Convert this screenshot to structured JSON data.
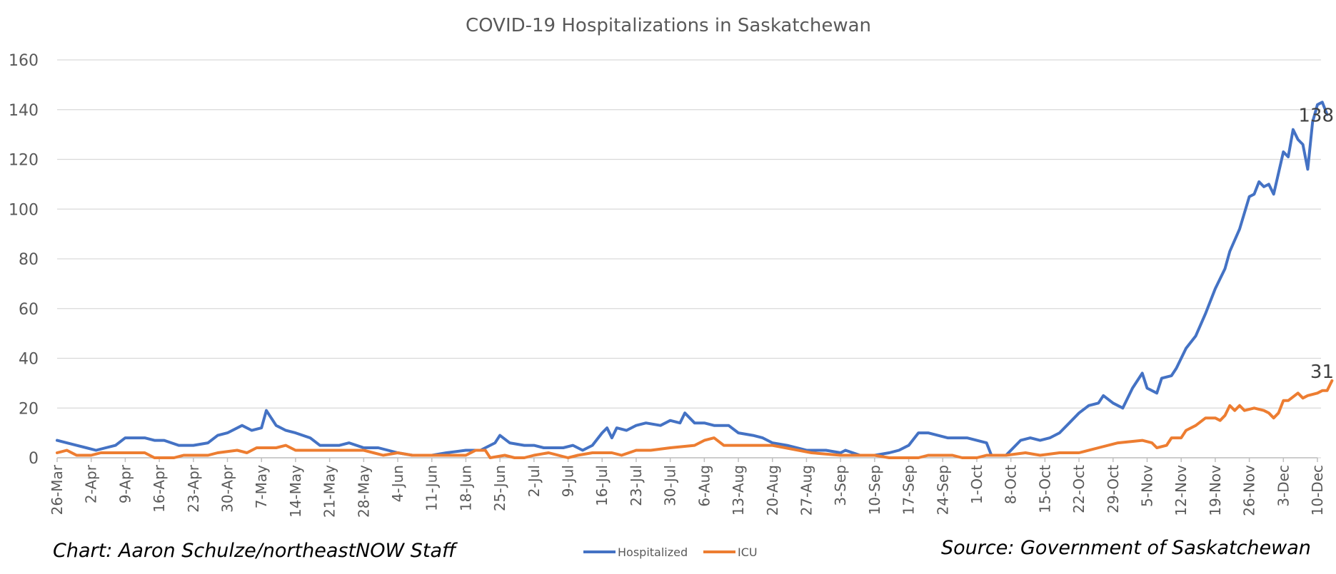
{
  "chart_data": {
    "type": "line",
    "title": "COVID-19 Hospitalizations in Saskatchewan",
    "xlabel": "",
    "ylabel": "",
    "ylim": [
      0,
      160
    ],
    "yticks": [
      "0",
      "20",
      "40",
      "60",
      "80",
      "100",
      "120",
      "140",
      "160"
    ],
    "grid": true,
    "legend_position": "bottom",
    "x_start": "26-Mar",
    "x_end": "10-Dec",
    "xticks": [
      "26-Mar",
      "2-Apr",
      "9-Apr",
      "16-Apr",
      "23-Apr",
      "30-Apr",
      "7-May",
      "14-May",
      "21-May",
      "28-May",
      "4-Jun",
      "11-Jun",
      "18-Jun",
      "25-Jun",
      "2-Jul",
      "9-Jul",
      "16-Jul",
      "23-Jul",
      "30-Jul",
      "6-Aug",
      "13-Aug",
      "20-Aug",
      "27-Aug",
      "3-Sep",
      "10-Sep",
      "17-Sep",
      "24-Sep",
      "1-Oct",
      "8-Oct",
      "15-Oct",
      "22-Oct",
      "29-Oct",
      "5-Nov",
      "12-Nov",
      "19-Nov",
      "26-Nov",
      "3-Dec",
      "10-Dec"
    ],
    "series": [
      {
        "name": "Hospitalized",
        "color": "#4472C4",
        "end_label": "138",
        "points": [
          [
            "26-Mar",
            7
          ],
          [
            "28-Mar",
            6
          ],
          [
            "30-Mar",
            5
          ],
          [
            "1-Apr",
            4
          ],
          [
            "3-Apr",
            3
          ],
          [
            "5-Apr",
            4
          ],
          [
            "7-Apr",
            5
          ],
          [
            "9-Apr",
            8
          ],
          [
            "13-Apr",
            8
          ],
          [
            "15-Apr",
            7
          ],
          [
            "17-Apr",
            7
          ],
          [
            "20-Apr",
            5
          ],
          [
            "23-Apr",
            5
          ],
          [
            "26-Apr",
            6
          ],
          [
            "28-Apr",
            9
          ],
          [
            "30-Apr",
            10
          ],
          [
            "3-May",
            13
          ],
          [
            "5-May",
            11
          ],
          [
            "7-May",
            12
          ],
          [
            "8-May",
            19
          ],
          [
            "10-May",
            13
          ],
          [
            "12-May",
            11
          ],
          [
            "14-May",
            10
          ],
          [
            "17-May",
            8
          ],
          [
            "19-May",
            5
          ],
          [
            "21-May",
            5
          ],
          [
            "23-May",
            5
          ],
          [
            "25-May",
            6
          ],
          [
            "28-May",
            4
          ],
          [
            "31-May",
            4
          ],
          [
            "2-Jun",
            3
          ],
          [
            "4-Jun",
            2
          ],
          [
            "7-Jun",
            1
          ],
          [
            "11-Jun",
            1
          ],
          [
            "14-Jun",
            2
          ],
          [
            "18-Jun",
            3
          ],
          [
            "21-Jun",
            3
          ],
          [
            "24-Jun",
            6
          ],
          [
            "25-Jun",
            9
          ],
          [
            "27-Jun",
            6
          ],
          [
            "30-Jun",
            5
          ],
          [
            "2-Jul",
            5
          ],
          [
            "4-Jul",
            4
          ],
          [
            "8-Jul",
            4
          ],
          [
            "10-Jul",
            5
          ],
          [
            "12-Jul",
            3
          ],
          [
            "14-Jul",
            5
          ],
          [
            "16-Jul",
            10
          ],
          [
            "17-Jul",
            12
          ],
          [
            "18-Jul",
            8
          ],
          [
            "19-Jul",
            12
          ],
          [
            "21-Jul",
            11
          ],
          [
            "23-Jul",
            13
          ],
          [
            "25-Jul",
            14
          ],
          [
            "28-Jul",
            13
          ],
          [
            "30-Jul",
            15
          ],
          [
            "1-Aug",
            14
          ],
          [
            "2-Aug",
            18
          ],
          [
            "4-Aug",
            14
          ],
          [
            "6-Aug",
            14
          ],
          [
            "8-Aug",
            13
          ],
          [
            "11-Aug",
            13
          ],
          [
            "13-Aug",
            10
          ],
          [
            "16-Aug",
            9
          ],
          [
            "18-Aug",
            8
          ],
          [
            "20-Aug",
            6
          ],
          [
            "23-Aug",
            5
          ],
          [
            "27-Aug",
            3
          ],
          [
            "31-Aug",
            3
          ],
          [
            "3-Sep",
            2
          ],
          [
            "4-Sep",
            3
          ],
          [
            "7-Sep",
            1
          ],
          [
            "10-Sep",
            1
          ],
          [
            "13-Sep",
            2
          ],
          [
            "15-Sep",
            3
          ],
          [
            "17-Sep",
            5
          ],
          [
            "19-Sep",
            10
          ],
          [
            "21-Sep",
            10
          ],
          [
            "23-Sep",
            9
          ],
          [
            "25-Sep",
            8
          ],
          [
            "27-Sep",
            8
          ],
          [
            "29-Sep",
            8
          ],
          [
            "1-Oct",
            7
          ],
          [
            "3-Oct",
            6
          ],
          [
            "4-Oct",
            1
          ],
          [
            "7-Oct",
            1
          ],
          [
            "10-Oct",
            7
          ],
          [
            "12-Oct",
            8
          ],
          [
            "14-Oct",
            7
          ],
          [
            "16-Oct",
            8
          ],
          [
            "18-Oct",
            10
          ],
          [
            "20-Oct",
            14
          ],
          [
            "22-Oct",
            18
          ],
          [
            "24-Oct",
            21
          ],
          [
            "26-Oct",
            22
          ],
          [
            "27-Oct",
            25
          ],
          [
            "29-Oct",
            22
          ],
          [
            "31-Oct",
            20
          ],
          [
            "2-Nov",
            28
          ],
          [
            "4-Nov",
            34
          ],
          [
            "5-Nov",
            28
          ],
          [
            "7-Nov",
            26
          ],
          [
            "8-Nov",
            32
          ],
          [
            "10-Nov",
            33
          ],
          [
            "11-Nov",
            36
          ],
          [
            "13-Nov",
            44
          ],
          [
            "15-Nov",
            49
          ],
          [
            "17-Nov",
            58
          ],
          [
            "19-Nov",
            68
          ],
          [
            "21-Nov",
            76
          ],
          [
            "22-Nov",
            83
          ],
          [
            "24-Nov",
            92
          ],
          [
            "26-Nov",
            105
          ],
          [
            "27-Nov",
            106
          ],
          [
            "28-Nov",
            111
          ],
          [
            "29-Nov",
            109
          ],
          [
            "30-Nov",
            110
          ],
          [
            "1-Dec",
            106
          ],
          [
            "3-Dec",
            123
          ],
          [
            "4-Dec",
            121
          ],
          [
            "5-Dec",
            132
          ],
          [
            "6-Dec",
            128
          ],
          [
            "7-Dec",
            126
          ],
          [
            "8-Dec",
            116
          ],
          [
            "9-Dec",
            135
          ],
          [
            "10-Dec",
            142
          ],
          [
            "11-Dec",
            143
          ],
          [
            "12-Dec",
            138
          ]
        ]
      },
      {
        "name": "ICU",
        "color": "#ED7D31",
        "end_label": "31",
        "points": [
          [
            "26-Mar",
            2
          ],
          [
            "28-Mar",
            3
          ],
          [
            "30-Mar",
            1
          ],
          [
            "2-Apr",
            1
          ],
          [
            "4-Apr",
            2
          ],
          [
            "9-Apr",
            2
          ],
          [
            "13-Apr",
            2
          ],
          [
            "15-Apr",
            0
          ],
          [
            "19-Apr",
            0
          ],
          [
            "21-Apr",
            1
          ],
          [
            "26-Apr",
            1
          ],
          [
            "28-Apr",
            2
          ],
          [
            "2-May",
            3
          ],
          [
            "4-May",
            2
          ],
          [
            "6-May",
            4
          ],
          [
            "10-May",
            4
          ],
          [
            "12-May",
            5
          ],
          [
            "14-May",
            3
          ],
          [
            "21-May",
            3
          ],
          [
            "28-May",
            3
          ],
          [
            "30-May",
            2
          ],
          [
            "1-Jun",
            1
          ],
          [
            "4-Jun",
            2
          ],
          [
            "7-Jun",
            1
          ],
          [
            "18-Jun",
            1
          ],
          [
            "20-Jun",
            3
          ],
          [
            "22-Jun",
            3
          ],
          [
            "23-Jun",
            0
          ],
          [
            "26-Jun",
            1
          ],
          [
            "28-Jun",
            0
          ],
          [
            "30-Jun",
            0
          ],
          [
            "2-Jul",
            1
          ],
          [
            "5-Jul",
            2
          ],
          [
            "7-Jul",
            1
          ],
          [
            "9-Jul",
            0
          ],
          [
            "11-Jul",
            1
          ],
          [
            "14-Jul",
            2
          ],
          [
            "18-Jul",
            2
          ],
          [
            "20-Jul",
            1
          ],
          [
            "23-Jul",
            3
          ],
          [
            "26-Jul",
            3
          ],
          [
            "30-Jul",
            4
          ],
          [
            "4-Aug",
            5
          ],
          [
            "6-Aug",
            7
          ],
          [
            "8-Aug",
            8
          ],
          [
            "10-Aug",
            5
          ],
          [
            "12-Aug",
            5
          ],
          [
            "16-Aug",
            5
          ],
          [
            "20-Aug",
            5
          ],
          [
            "28-Aug",
            2
          ],
          [
            "3-Sep",
            1
          ],
          [
            "10-Sep",
            1
          ],
          [
            "13-Sep",
            0
          ],
          [
            "19-Sep",
            0
          ],
          [
            "21-Sep",
            1
          ],
          [
            "26-Sep",
            1
          ],
          [
            "28-Sep",
            0
          ],
          [
            "1-Oct",
            0
          ],
          [
            "3-Oct",
            1
          ],
          [
            "7-Oct",
            1
          ],
          [
            "11-Oct",
            2
          ],
          [
            "14-Oct",
            1
          ],
          [
            "18-Oct",
            2
          ],
          [
            "22-Oct",
            2
          ],
          [
            "26-Oct",
            4
          ],
          [
            "30-Oct",
            6
          ],
          [
            "4-Nov",
            7
          ],
          [
            "6-Nov",
            6
          ],
          [
            "7-Nov",
            4
          ],
          [
            "9-Nov",
            5
          ],
          [
            "10-Nov",
            8
          ],
          [
            "12-Nov",
            8
          ],
          [
            "13-Nov",
            11
          ],
          [
            "15-Nov",
            13
          ],
          [
            "17-Nov",
            16
          ],
          [
            "19-Nov",
            16
          ],
          [
            "20-Nov",
            15
          ],
          [
            "21-Nov",
            17
          ],
          [
            "22-Nov",
            21
          ],
          [
            "23-Nov",
            19
          ],
          [
            "24-Nov",
            21
          ],
          [
            "25-Nov",
            19
          ],
          [
            "27-Nov",
            20
          ],
          [
            "29-Nov",
            19
          ],
          [
            "30-Nov",
            18
          ],
          [
            "1-Dec",
            16
          ],
          [
            "2-Dec",
            18
          ],
          [
            "3-Dec",
            23
          ],
          [
            "4-Dec",
            23
          ],
          [
            "6-Dec",
            26
          ],
          [
            "7-Dec",
            24
          ],
          [
            "8-Dec",
            25
          ],
          [
            "10-Dec",
            26
          ],
          [
            "11-Dec",
            27
          ],
          [
            "12-Dec",
            27
          ],
          [
            "13-Dec",
            31
          ]
        ]
      }
    ]
  },
  "credits": {
    "left": "Chart: Aaron Schulze/northeastNOW Staff",
    "right": "Source: Government of Saskatchewan"
  }
}
